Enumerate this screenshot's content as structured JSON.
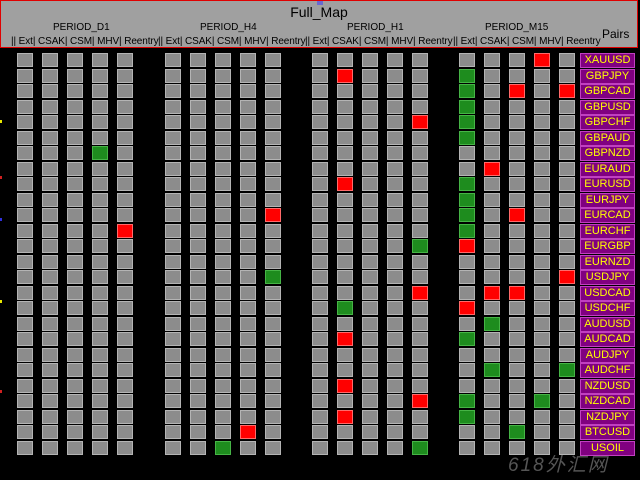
{
  "title": "Full_Map",
  "periods": [
    "PERIOD_D1",
    "PERIOD_H4",
    "PERIOD_H1",
    "PERIOD_M15"
  ],
  "column_labels": [
    "Ext",
    "CSAK",
    "CSM",
    "MHV",
    "Reentry"
  ],
  "column_header_texts": [
    "|| Ext| CSAK| CSM| MHV| Reentry",
    "|| Ext| CSAK| CSM| MHV| Reentry",
    "|| Ext| CSAK| CSM| MHV| Reentry",
    "|| Ext| CSAK| CSM| MHV| Reentry"
  ],
  "pairs_header": "Pairs",
  "pairs": [
    "XAUUSD",
    "GBPJPY",
    "GBPCAD",
    "GBPUSD",
    "GBPCHF",
    "GBPAUD",
    "GBPNZD",
    "EURAUD",
    "EURUSD",
    "EURJPY",
    "EURCAD",
    "EURCHF",
    "EURGBP",
    "EURNZD",
    "USDJPY",
    "USDCAD",
    "USDCHF",
    "AUDUSD",
    "AUDCAD",
    "AUDJPY",
    "AUDCHF",
    "NZDUSD",
    "NZDCAD",
    "NZDJPY",
    "BTCUSD",
    "USOIL"
  ],
  "signals": [
    [
      "",
      "",
      "",
      "",
      "",
      "",
      "",
      "",
      "",
      "",
      "",
      "",
      "",
      "",
      "",
      "",
      "",
      "",
      "R",
      ""
    ],
    [
      "",
      "",
      "",
      "",
      "",
      "",
      "",
      "",
      "",
      "",
      "",
      "R",
      "",
      "",
      "",
      "G",
      "",
      "",
      "",
      ""
    ],
    [
      "",
      "",
      "",
      "",
      "",
      "",
      "",
      "",
      "",
      "",
      "",
      "",
      "",
      "",
      "",
      "G",
      "",
      "R",
      "",
      "R"
    ],
    [
      "",
      "",
      "",
      "",
      "",
      "",
      "",
      "",
      "",
      "",
      "",
      "",
      "",
      "",
      "",
      "G",
      "",
      "",
      "",
      ""
    ],
    [
      "",
      "",
      "",
      "",
      "",
      "",
      "",
      "",
      "",
      "",
      "",
      "",
      "",
      "",
      "R",
      "G",
      "",
      "",
      "",
      ""
    ],
    [
      "",
      "",
      "",
      "",
      "",
      "",
      "",
      "",
      "",
      "",
      "",
      "",
      "",
      "",
      "",
      "G",
      "",
      "",
      "",
      ""
    ],
    [
      "",
      "",
      "",
      "G",
      "",
      "",
      "",
      "",
      "",
      "",
      "",
      "",
      "",
      "",
      "",
      "",
      "",
      "",
      "",
      ""
    ],
    [
      "",
      "",
      "",
      "",
      "",
      "",
      "",
      "",
      "",
      "",
      "",
      "",
      "",
      "",
      "",
      "",
      "R",
      "",
      "",
      ""
    ],
    [
      "",
      "",
      "",
      "",
      "",
      "",
      "",
      "",
      "",
      "",
      "",
      "R",
      "",
      "",
      "",
      "G",
      "",
      "",
      "",
      ""
    ],
    [
      "",
      "",
      "",
      "",
      "",
      "",
      "",
      "",
      "",
      "",
      "",
      "",
      "",
      "",
      "",
      "G",
      "",
      "",
      "",
      ""
    ],
    [
      "",
      "",
      "",
      "",
      "",
      "",
      "",
      "",
      "",
      "R",
      "",
      "",
      "",
      "",
      "",
      "G",
      "",
      "R",
      "",
      ""
    ],
    [
      "",
      "",
      "",
      "",
      "R",
      "",
      "",
      "",
      "",
      "",
      "",
      "",
      "",
      "",
      "",
      "G",
      "",
      "",
      "",
      ""
    ],
    [
      "",
      "",
      "",
      "",
      "",
      "",
      "",
      "",
      "",
      "",
      "",
      "",
      "",
      "",
      "G",
      "R",
      "",
      "",
      "",
      ""
    ],
    [
      "",
      "",
      "",
      "",
      "",
      "",
      "",
      "",
      "",
      "",
      "",
      "",
      "",
      "",
      "",
      "",
      "",
      "",
      "",
      ""
    ],
    [
      "",
      "",
      "",
      "",
      "",
      "",
      "",
      "",
      "",
      "G",
      "",
      "",
      "",
      "",
      "",
      "",
      "",
      "",
      "",
      "R"
    ],
    [
      "",
      "",
      "",
      "",
      "",
      "",
      "",
      "",
      "",
      "",
      "",
      "",
      "",
      "",
      "R",
      "",
      "R",
      "R",
      "",
      ""
    ],
    [
      "",
      "",
      "",
      "",
      "",
      "",
      "",
      "",
      "",
      "",
      "",
      "G",
      "",
      "",
      "",
      "R",
      "",
      "",
      "",
      ""
    ],
    [
      "",
      "",
      "",
      "",
      "",
      "",
      "",
      "",
      "",
      "",
      "",
      "",
      "",
      "",
      "",
      "",
      "G",
      "",
      "",
      ""
    ],
    [
      "",
      "",
      "",
      "",
      "",
      "",
      "",
      "",
      "",
      "",
      "",
      "R",
      "",
      "",
      "",
      "G",
      "",
      "",
      "",
      ""
    ],
    [
      "",
      "",
      "",
      "",
      "",
      "",
      "",
      "",
      "",
      "",
      "",
      "",
      "",
      "",
      "",
      "",
      "",
      "",
      "",
      ""
    ],
    [
      "",
      "",
      "",
      "",
      "",
      "",
      "",
      "",
      "",
      "",
      "",
      "",
      "",
      "",
      "",
      "",
      "G",
      "",
      "",
      "G"
    ],
    [
      "",
      "",
      "",
      "",
      "",
      "",
      "",
      "",
      "",
      "",
      "",
      "R",
      "",
      "",
      "",
      "",
      "",
      "",
      "",
      ""
    ],
    [
      "",
      "",
      "",
      "",
      "",
      "",
      "",
      "",
      "",
      "",
      "",
      "",
      "",
      "",
      "R",
      "G",
      "",
      "",
      "G",
      ""
    ],
    [
      "",
      "",
      "",
      "",
      "",
      "",
      "",
      "",
      "",
      "",
      "",
      "R",
      "",
      "",
      "",
      "G",
      "",
      "",
      "",
      ""
    ],
    [
      "",
      "",
      "",
      "",
      "",
      "",
      "",
      "",
      "R",
      "",
      "",
      "",
      "",
      "",
      "",
      "",
      "",
      "G",
      "",
      ""
    ],
    [
      "",
      "",
      "",
      "",
      "",
      "",
      "",
      "G",
      "",
      "",
      "",
      "",
      "",
      "",
      "G",
      "",
      "",
      "",
      "",
      ""
    ]
  ],
  "colors": {
    "neutral": "#8c8c8c",
    "red": "#ff0000",
    "green": "#1e8c1e",
    "pair_bg": "#800080",
    "pair_text": "#ffff00",
    "header_bg": "#a0a0a0"
  },
  "watermark": "618外汇网"
}
